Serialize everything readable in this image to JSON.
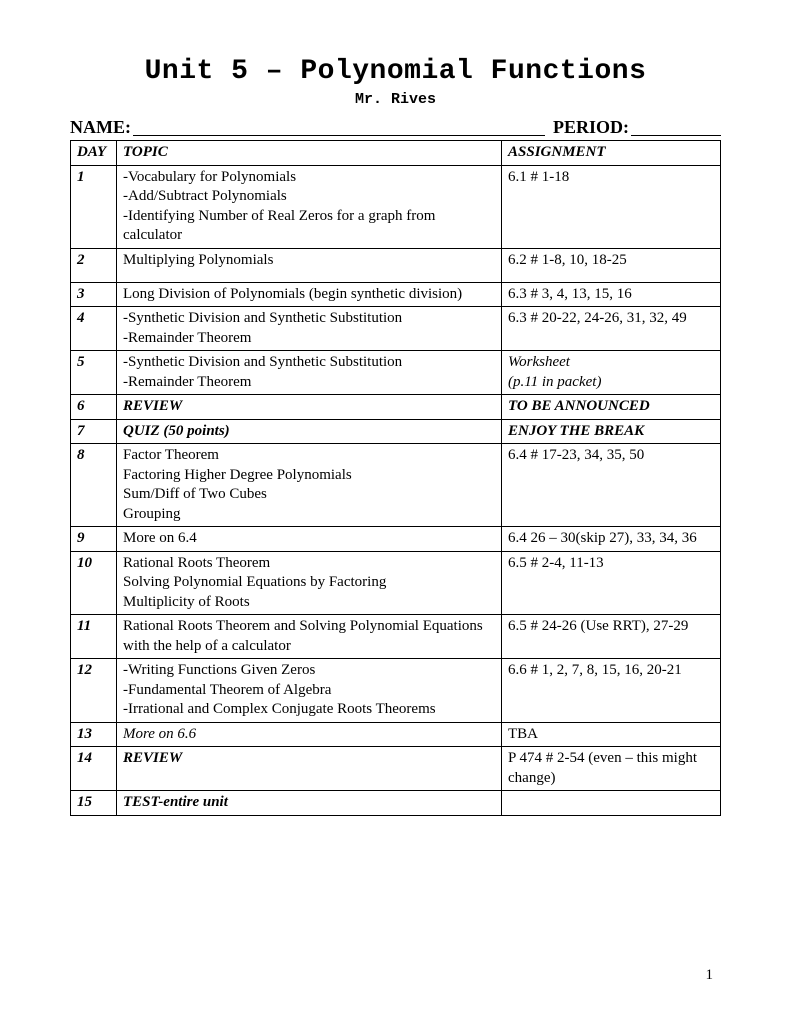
{
  "title": "Unit 5 – Polynomial Functions",
  "subtitle": "Mr. Rives",
  "labels": {
    "name": "NAME:",
    "period": "PERIOD:"
  },
  "headers": {
    "day": "DAY",
    "topic": "TOPIC",
    "assignment": "ASSIGNMENT"
  },
  "rows": [
    {
      "day": "1",
      "topic_lines": [
        "-Vocabulary for Polynomials",
        "-Add/Subtract Polynomials",
        "-Identifying Number of Real Zeros for a graph from calculator"
      ],
      "assignment": "6.1 # 1-18"
    },
    {
      "day": "2",
      "topic_lines": [
        "Multiplying Polynomials"
      ],
      "assignment": "6.2 # 1-8, 10, 18-25",
      "tall": true
    },
    {
      "day": "3",
      "topic_lines": [
        "Long Division of Polynomials (begin synthetic division)"
      ],
      "assignment": "6.3 # 3, 4, 13, 15, 16"
    },
    {
      "day": "4",
      "topic_lines": [
        "-Synthetic Division and Synthetic Substitution",
        "-Remainder Theorem"
      ],
      "assignment": "6.3 # 20-22, 24-26, 31, 32, 49"
    },
    {
      "day": "5",
      "topic_lines": [
        "-Synthetic Division and Synthetic Substitution",
        "-Remainder Theorem"
      ],
      "assignment": "Worksheet\n(p.11 in packet)",
      "assignment_italic": true
    },
    {
      "day": "6",
      "topic_lines": [
        "REVIEW"
      ],
      "topic_bold_italic": true,
      "assignment": "TO BE ANNOUNCED",
      "assignment_bold_italic": true
    },
    {
      "day": "7",
      "topic_lines": [
        "QUIZ (50 points)"
      ],
      "topic_bold_italic": true,
      "assignment": "ENJOY THE BREAK",
      "assignment_bold_italic": true
    },
    {
      "day": "8",
      "topic_lines": [
        "Factor Theorem",
        "Factoring Higher Degree Polynomials",
        "Sum/Diff of Two Cubes",
        "Grouping"
      ],
      "assignment": "6.4 # 17-23, 34, 35, 50"
    },
    {
      "day": "9",
      "topic_lines": [
        "More on 6.4"
      ],
      "assignment": "6.4 26 – 30(skip 27), 33, 34, 36"
    },
    {
      "day": "10",
      "topic_lines": [
        "Rational Roots Theorem",
        "Solving Polynomial Equations by Factoring",
        "Multiplicity of Roots"
      ],
      "assignment": "6.5 # 2-4, 11-13"
    },
    {
      "day": "11",
      "topic_lines": [
        "Rational Roots Theorem and Solving Polynomial Equations with the help of a calculator"
      ],
      "assignment": "6.5 # 24-26 (Use RRT), 27-29"
    },
    {
      "day": "12",
      "topic_lines": [
        "-Writing Functions Given Zeros",
        "-Fundamental Theorem of Algebra",
        "-Irrational and Complex Conjugate Roots Theorems"
      ],
      "assignment": "6.6 # 1, 2, 7, 8, 15, 16, 20-21"
    },
    {
      "day": "13",
      "topic_lines": [
        "More on 6.6"
      ],
      "topic_italic": true,
      "assignment": "TBA"
    },
    {
      "day": "14",
      "topic_lines": [
        "REVIEW"
      ],
      "topic_bold_italic": true,
      "assignment": "P 474 # 2-54 (even – this might change)"
    },
    {
      "day": "15",
      "topic_lines": [
        "TEST-entire unit"
      ],
      "topic_bold_italic": true,
      "assignment": ""
    }
  ],
  "page_number": "1"
}
